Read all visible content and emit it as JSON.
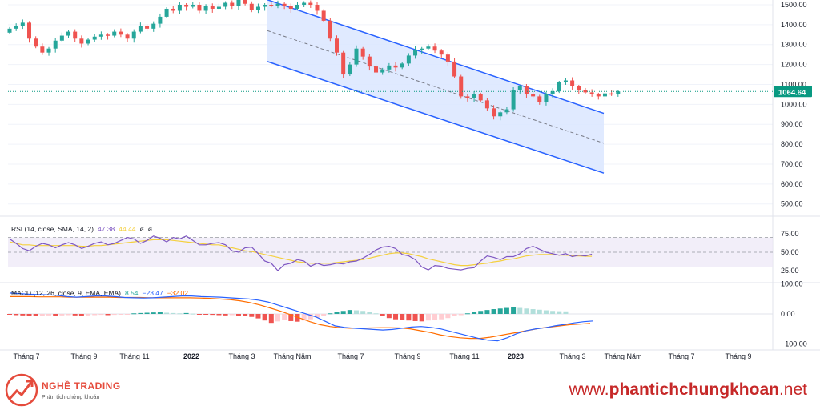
{
  "chart_data": {
    "type": "candlestick",
    "price_panel": {
      "y_ticks": [
        500,
        600,
        700,
        800,
        900,
        1000,
        1100,
        1200,
        1300,
        1400,
        1500
      ],
      "last_price": "1064.64",
      "channel_label": "descending regression channel",
      "candles": [
        {
          "o": 1360,
          "c": 1380
        },
        {
          "o": 1380,
          "c": 1395
        },
        {
          "o": 1395,
          "c": 1410
        },
        {
          "o": 1410,
          "c": 1330
        },
        {
          "o": 1330,
          "c": 1290
        },
        {
          "o": 1290,
          "c": 1260
        },
        {
          "o": 1260,
          "c": 1280
        },
        {
          "o": 1280,
          "c": 1320
        },
        {
          "o": 1320,
          "c": 1345
        },
        {
          "o": 1345,
          "c": 1365
        },
        {
          "o": 1365,
          "c": 1330
        },
        {
          "o": 1330,
          "c": 1305
        },
        {
          "o": 1305,
          "c": 1325
        },
        {
          "o": 1325,
          "c": 1340
        },
        {
          "o": 1340,
          "c": 1350
        },
        {
          "o": 1350,
          "c": 1345
        },
        {
          "o": 1345,
          "c": 1365
        },
        {
          "o": 1365,
          "c": 1350
        },
        {
          "o": 1350,
          "c": 1330
        },
        {
          "o": 1330,
          "c": 1365
        },
        {
          "o": 1365,
          "c": 1395
        },
        {
          "o": 1395,
          "c": 1380
        },
        {
          "o": 1380,
          "c": 1405
        },
        {
          "o": 1405,
          "c": 1440
        },
        {
          "o": 1440,
          "c": 1480
        },
        {
          "o": 1480,
          "c": 1470
        },
        {
          "o": 1470,
          "c": 1500
        },
        {
          "o": 1500,
          "c": 1490
        },
        {
          "o": 1490,
          "c": 1500
        },
        {
          "o": 1500,
          "c": 1470
        },
        {
          "o": 1470,
          "c": 1495
        },
        {
          "o": 1495,
          "c": 1480
        },
        {
          "o": 1480,
          "c": 1490
        },
        {
          "o": 1490,
          "c": 1510
        },
        {
          "o": 1510,
          "c": 1495
        },
        {
          "o": 1495,
          "c": 1525
        },
        {
          "o": 1525,
          "c": 1505
        },
        {
          "o": 1505,
          "c": 1475
        },
        {
          "o": 1475,
          "c": 1490
        },
        {
          "o": 1490,
          "c": 1500
        },
        {
          "o": 1500,
          "c": 1495
        },
        {
          "o": 1495,
          "c": 1505
        },
        {
          "o": 1505,
          "c": 1495
        },
        {
          "o": 1495,
          "c": 1480
        },
        {
          "o": 1480,
          "c": 1500
        },
        {
          "o": 1500,
          "c": 1510
        },
        {
          "o": 1510,
          "c": 1500
        },
        {
          "o": 1500,
          "c": 1470
        },
        {
          "o": 1470,
          "c": 1420
        },
        {
          "o": 1420,
          "c": 1330
        },
        {
          "o": 1330,
          "c": 1260
        },
        {
          "o": 1260,
          "c": 1150
        },
        {
          "o": 1150,
          "c": 1200
        },
        {
          "o": 1200,
          "c": 1280
        },
        {
          "o": 1280,
          "c": 1240
        },
        {
          "o": 1240,
          "c": 1190
        },
        {
          "o": 1190,
          "c": 1160
        },
        {
          "o": 1160,
          "c": 1175
        },
        {
          "o": 1175,
          "c": 1195
        },
        {
          "o": 1195,
          "c": 1185
        },
        {
          "o": 1185,
          "c": 1205
        },
        {
          "o": 1205,
          "c": 1245
        },
        {
          "o": 1245,
          "c": 1275
        },
        {
          "o": 1275,
          "c": 1280
        },
        {
          "o": 1280,
          "c": 1290
        },
        {
          "o": 1290,
          "c": 1270
        },
        {
          "o": 1270,
          "c": 1250
        },
        {
          "o": 1250,
          "c": 1215
        },
        {
          "o": 1215,
          "c": 1140
        },
        {
          "o": 1140,
          "c": 1040
        },
        {
          "o": 1040,
          "c": 1030
        },
        {
          "o": 1030,
          "c": 1050
        },
        {
          "o": 1050,
          "c": 1020
        },
        {
          "o": 1020,
          "c": 980
        },
        {
          "o": 980,
          "c": 940
        },
        {
          "o": 940,
          "c": 960
        },
        {
          "o": 960,
          "c": 975
        },
        {
          "o": 975,
          "c": 1070
        },
        {
          "o": 1070,
          "c": 1090
        },
        {
          "o": 1090,
          "c": 1050
        },
        {
          "o": 1050,
          "c": 1040
        },
        {
          "o": 1040,
          "c": 1010
        },
        {
          "o": 1010,
          "c": 1050
        },
        {
          "o": 1050,
          "c": 1065
        },
        {
          "o": 1065,
          "c": 1110
        },
        {
          "o": 1110,
          "c": 1120
        },
        {
          "o": 1120,
          "c": 1090
        },
        {
          "o": 1090,
          "c": 1070
        },
        {
          "o": 1070,
          "c": 1060
        },
        {
          "o": 1060,
          "c": 1050
        },
        {
          "o": 1050,
          "c": 1040
        },
        {
          "o": 1040,
          "c": 1055
        },
        {
          "o": 1055,
          "c": 1050
        },
        {
          "o": 1050,
          "c": 1065
        }
      ]
    },
    "rsi_panel": {
      "legend_name": "RSI (14, close, SMA, 14, 2)",
      "legend_values": [
        "47.38",
        "44.44",
        "ø",
        "ø"
      ],
      "y_ticks": [
        25,
        50,
        75
      ],
      "rsi": [
        68,
        62,
        55,
        52,
        58,
        62,
        60,
        56,
        60,
        63,
        60,
        55,
        58,
        62,
        64,
        60,
        62,
        66,
        70,
        68,
        62,
        66,
        72,
        69,
        64,
        70,
        68,
        72,
        66,
        60,
        60,
        62,
        63,
        60,
        52,
        50,
        56,
        57,
        48,
        38,
        35,
        25,
        33,
        35,
        40,
        38,
        31,
        35,
        32,
        33,
        35,
        34,
        37,
        38,
        42,
        47,
        53,
        57,
        58,
        55,
        47,
        45,
        40,
        30,
        26,
        32,
        31,
        28,
        27,
        26,
        28,
        29,
        38,
        45,
        43,
        40,
        44,
        44,
        48,
        55,
        58,
        54,
        50,
        48,
        46,
        48,
        44,
        46,
        45,
        47.38
      ],
      "sma": [
        64,
        62,
        60,
        60,
        59,
        59,
        59,
        59,
        59,
        59,
        59,
        58,
        58,
        59,
        59,
        60,
        61,
        62,
        63,
        64,
        65,
        66,
        67,
        67,
        67,
        66,
        65,
        64,
        63,
        62,
        61,
        60,
        60,
        58,
        56,
        54,
        52,
        51,
        49,
        47,
        45,
        43,
        41,
        39,
        37,
        36,
        35,
        35,
        35,
        35,
        36,
        37,
        38,
        39,
        40,
        42,
        44,
        46,
        48,
        49,
        49,
        48,
        46,
        44,
        41,
        39,
        37,
        35,
        33,
        32,
        32,
        33,
        34,
        35,
        37,
        38,
        40,
        41,
        43,
        45,
        46,
        47,
        47,
        47,
        46,
        46,
        45,
        45,
        44.6,
        44.44
      ]
    },
    "macd_panel": {
      "legend_name": "MACD (12, 26, close, 9, EMA, EMA)",
      "legend_values": [
        "8.54",
        "−23.47",
        "−32.02"
      ],
      "y_ticks": [
        "100.00",
        "0.00",
        "−100.00"
      ],
      "histogram": [
        -2,
        -4,
        -5,
        -6,
        -7,
        -6,
        -5,
        -6,
        -5,
        -4,
        -5,
        -6,
        -5,
        -4,
        -3,
        -4,
        -3,
        -2,
        -1,
        2,
        3,
        4,
        5,
        6,
        4,
        3,
        2,
        3,
        1,
        -1,
        -2,
        -3,
        -4,
        -5,
        -4,
        -6,
        -8,
        -10,
        -15,
        -22,
        -30,
        -25,
        -20,
        -24,
        -26,
        -22,
        -18,
        -12,
        -6,
        2,
        6,
        10,
        13,
        12,
        10,
        6,
        2,
        -8,
        -14,
        -18,
        -20,
        -22,
        -24,
        -25,
        -22,
        -20,
        -18,
        -14,
        -8,
        -4,
        2,
        6,
        10,
        13,
        16,
        18,
        20,
        22,
        20,
        18,
        16,
        14,
        12,
        10,
        9,
        8.54
      ],
      "macd": [
        70,
        68,
        66,
        65,
        64,
        62,
        58,
        56,
        58,
        60,
        60,
        58,
        55,
        54,
        53,
        54,
        56,
        58,
        60,
        60,
        58,
        57,
        56,
        54,
        52,
        50,
        46,
        40,
        30,
        20,
        10,
        0,
        -10,
        -25,
        -40,
        -45,
        -48,
        -50,
        -52,
        -54,
        -52,
        -48,
        -44,
        -42,
        -45,
        -50,
        -58,
        -66,
        -74,
        -82,
        -88,
        -90,
        -80,
        -66,
        -56,
        -50,
        -46,
        -40,
        -35,
        -30,
        -26,
        -23.47
      ],
      "signal": [
        58,
        58,
        58,
        57,
        57,
        57,
        56,
        56,
        56,
        56,
        56,
        55,
        55,
        55,
        54,
        54,
        54,
        54,
        54,
        53,
        52,
        50,
        48,
        44,
        38,
        30,
        20,
        10,
        -2,
        -14,
        -26,
        -36,
        -42,
        -46,
        -48,
        -48,
        -47,
        -46,
        -46,
        -47,
        -50,
        -56,
        -62,
        -70,
        -76,
        -80,
        -82,
        -82,
        -78,
        -72,
        -66,
        -60,
        -54,
        -48,
        -44,
        -40,
        -36,
        -34,
        -32.02
      ]
    },
    "x_ticks": [
      "Tháng 7",
      "Tháng 9",
      "Tháng 11",
      "2022",
      "Tháng 3",
      "Tháng Năm",
      "Tháng 7",
      "Tháng 9",
      "Tháng 11",
      "2023",
      "Tháng 3",
      "Tháng Năm",
      "Tháng 7",
      "Tháng 9"
    ],
    "colors": {
      "up": "#26a69a",
      "down": "#ef5350",
      "channel_line": "#2962ff",
      "channel_fill": "#dbe6ff",
      "rsi": "#7e57c2",
      "rsi_ma": "#f4d03f",
      "rsi_band": "#ede7f6",
      "macd": "#2962ff",
      "signal": "#ff6d00",
      "hist_up": "#26a69a",
      "hist_up_light": "#b2dfdb",
      "hist_down": "#ef5350",
      "hist_down_light": "#ffcdd2",
      "last_price_bg": "#089981"
    }
  },
  "footer": {
    "brand_name": "NGHỀ TRADING",
    "brand_sub": "Phân tích chứng khoán",
    "site_prefix": "www.",
    "site_main": "phantichchungkhoan",
    "site_suffix": ".net"
  }
}
